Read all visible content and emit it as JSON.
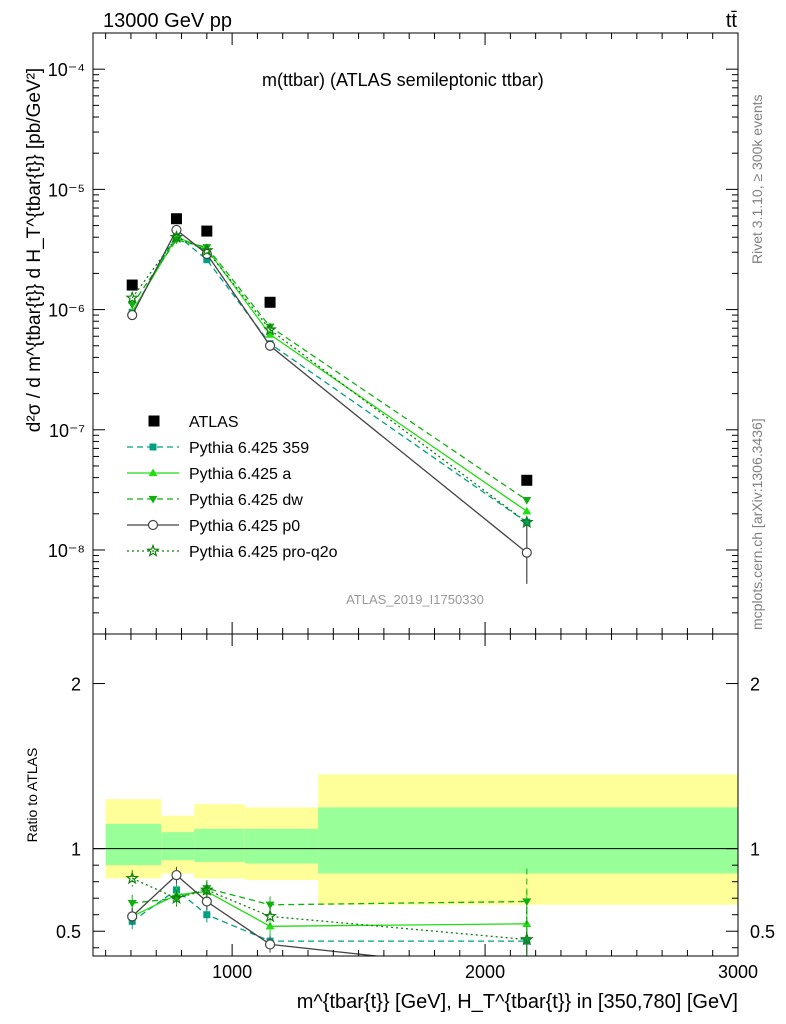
{
  "header": {
    "left": "13000 GeV pp",
    "right": "tt̄"
  },
  "side_labels": {
    "rivet": "Rivet 3.1.10, ≥ 300k events",
    "mcplots": "mcplots.cern.ch [arXiv:1306.3436]"
  },
  "colors": {
    "atlas": "#000000",
    "p359": "#00a080",
    "pa": "#22dd11",
    "pdw": "#10b010",
    "pp0": "#444444",
    "pq2o": "#108010",
    "band_outer": "#ffff99",
    "band_inner": "#99ff99"
  },
  "chart_data": [
    {
      "type": "scatter",
      "panel": "main",
      "title": "m(ttbar) (ATLAS semileptonic ttbar)",
      "watermark": "ATLAS_2019_I1750330",
      "ylabel": "d²σ / d m^{tbar{t}} d H_T^{tbar{t}} [pb/GeV²]",
      "yscale": "log",
      "xlim": [
        450,
        3000
      ],
      "ylim": [
        2e-09,
        0.0002
      ],
      "ytick_labels": [
        "10⁻⁸",
        "10⁻⁷",
        "10⁻⁶",
        "10⁻⁵",
        "10⁻⁴"
      ],
      "legend_position": "lower-left",
      "x": [
        605,
        780,
        900,
        1150,
        2165
      ],
      "series": [
        {
          "name": "ATLAS",
          "key": "atlas",
          "values": [
            1.6e-06,
            5.7e-06,
            4.5e-06,
            1.15e-06,
            3.8e-08
          ]
        },
        {
          "name": "Pythia 6.425 359",
          "key": "p359",
          "values": [
            9.5e-07,
            4.2e-06,
            2.6e-06,
            5.2e-07,
            1.7e-08
          ]
        },
        {
          "name": "Pythia 6.425 a",
          "key": "pa",
          "values": [
            9.6e-07,
            4e-06,
            3.2e-06,
            6.2e-07,
            2.1e-08
          ]
        },
        {
          "name": "Pythia 6.425 dw",
          "key": "pdw",
          "values": [
            1.1e-06,
            3.8e-06,
            3.3e-06,
            7.2e-07,
            2.6e-08
          ]
        },
        {
          "name": "Pythia 6.425 p0",
          "key": "pp0",
          "values": [
            9e-07,
            4.6e-06,
            2.9e-06,
            5e-07,
            9.5e-09
          ]
        },
        {
          "name": "Pythia 6.425 pro-q2o",
          "key": "pq2o",
          "values": [
            1.25e-06,
            4e-06,
            3.1e-06,
            6.8e-07,
            1.7e-08
          ]
        }
      ]
    },
    {
      "type": "line",
      "panel": "ratio",
      "ylabel": "Ratio to ATLAS",
      "xlabel": "m^{tbar{t}} [GeV], H_T^{tbar{t}} in [350,780] [GeV]",
      "xlim": [
        450,
        3000
      ],
      "ylim": [
        0.35,
        2.3
      ],
      "xtick_labels": [
        "1000",
        "2000",
        "3000"
      ],
      "ytick_labels": [
        "0.5",
        "1",
        "2"
      ],
      "bins": [
        [
          500,
          720
        ],
        [
          720,
          850
        ],
        [
          850,
          1050
        ],
        [
          1050,
          1340
        ],
        [
          1340,
          3000
        ]
      ],
      "band_outer": [
        [
          0.82,
          1.3
        ],
        [
          0.85,
          1.2
        ],
        [
          0.82,
          1.27
        ],
        [
          0.81,
          1.25
        ],
        [
          0.66,
          1.45
        ]
      ],
      "band_inner": [
        [
          0.9,
          1.15
        ],
        [
          0.93,
          1.1
        ],
        [
          0.92,
          1.12
        ],
        [
          0.91,
          1.12
        ],
        [
          0.85,
          1.25
        ]
      ],
      "x": [
        605,
        780,
        900,
        1150,
        2165
      ],
      "series": [
        {
          "name": "Pythia 6.425 359",
          "key": "p359",
          "values": [
            0.56,
            0.75,
            0.6,
            0.44,
            0.44
          ]
        },
        {
          "name": "Pythia 6.425 a",
          "key": "pa",
          "values": [
            0.59,
            0.72,
            0.74,
            0.53,
            0.545
          ]
        },
        {
          "name": "Pythia 6.425 dw",
          "key": "pdw",
          "values": [
            0.67,
            0.7,
            0.76,
            0.66,
            0.68
          ]
        },
        {
          "name": "Pythia 6.425 p0",
          "key": "pp0",
          "values": [
            0.59,
            0.84,
            0.68,
            0.42,
            0.25
          ]
        },
        {
          "name": "Pythia 6.425 pro-q2o",
          "key": "pq2o",
          "values": [
            0.82,
            0.7,
            0.75,
            0.59,
            0.45
          ]
        }
      ]
    }
  ]
}
